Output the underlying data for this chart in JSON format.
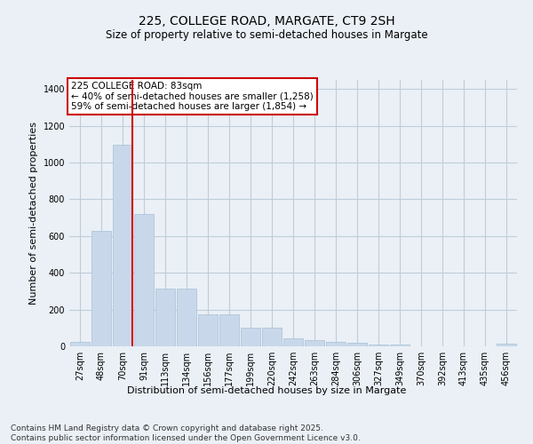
{
  "title": "225, COLLEGE ROAD, MARGATE, CT9 2SH",
  "subtitle": "Size of property relative to semi-detached houses in Margate",
  "xlabel": "Distribution of semi-detached houses by size in Margate",
  "ylabel": "Number of semi-detached properties",
  "categories": [
    "27sqm",
    "48sqm",
    "70sqm",
    "91sqm",
    "113sqm",
    "134sqm",
    "156sqm",
    "177sqm",
    "199sqm",
    "220sqm",
    "242sqm",
    "263sqm",
    "284sqm",
    "306sqm",
    "327sqm",
    "349sqm",
    "370sqm",
    "392sqm",
    "413sqm",
    "435sqm",
    "456sqm"
  ],
  "values": [
    25,
    630,
    1095,
    720,
    315,
    315,
    175,
    175,
    100,
    100,
    45,
    35,
    25,
    20,
    8,
    8,
    0,
    0,
    0,
    0,
    15
  ],
  "bar_color": "#c8d8ea",
  "bar_edge_color": "#a8c0d4",
  "vline_x_index": 2,
  "vline_color": "#cc0000",
  "annotation_text": "225 COLLEGE ROAD: 83sqm\n← 40% of semi-detached houses are smaller (1,258)\n59% of semi-detached houses are larger (1,854) →",
  "annotation_box_color": "#ffffff",
  "annotation_box_edge": "#cc0000",
  "ylim": [
    0,
    1450
  ],
  "yticks": [
    0,
    200,
    400,
    600,
    800,
    1000,
    1200,
    1400
  ],
  "footer": "Contains HM Land Registry data © Crown copyright and database right 2025.\nContains public sector information licensed under the Open Government Licence v3.0.",
  "bg_color": "#eaf0f6",
  "plot_bg_color": "#eaf0f6",
  "grid_color": "#c0ccd8",
  "title_fontsize": 10,
  "subtitle_fontsize": 8.5,
  "tick_fontsize": 7,
  "label_fontsize": 8,
  "footer_fontsize": 6.5,
  "annotation_fontsize": 7.5
}
